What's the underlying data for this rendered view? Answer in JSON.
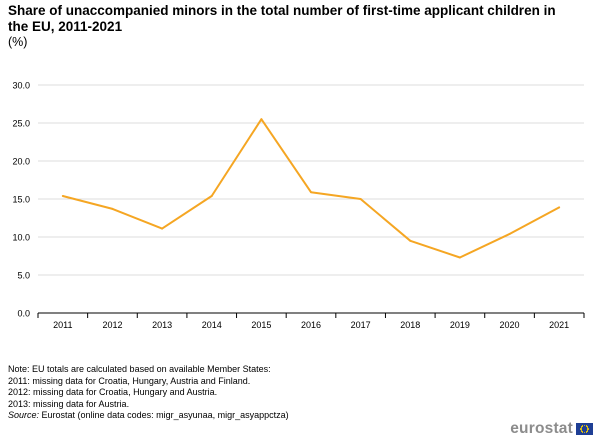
{
  "title": "Share of unaccompanied minors in the total number of first-time applicant children in the EU, 2011-2021",
  "unit_label": "(%)",
  "chart_data": {
    "type": "line",
    "title": "Share of unaccompanied minors in the total number of first-time applicant children in the EU, 2011-2021",
    "xlabel": "",
    "ylabel": "(%)",
    "categories": [
      "2011",
      "2012",
      "2013",
      "2014",
      "2015",
      "2016",
      "2017",
      "2018",
      "2019",
      "2020",
      "2021"
    ],
    "series": [
      {
        "values": [
          15.4,
          13.7,
          11.1,
          15.4,
          25.5,
          15.9,
          15.0,
          9.5,
          7.3,
          10.4,
          13.9
        ],
        "color": "#f5a623"
      }
    ],
    "ylim": [
      0,
      30
    ],
    "yticks": [
      "0.0",
      "5.0",
      "10.0",
      "15.0",
      "20.0",
      "25.0",
      "30.0"
    ],
    "grid": true,
    "legend": "none"
  },
  "notes": [
    "Note: EU totals are calculated based on available Member States:",
    "2011: missing data for Croatia, Hungary, Austria and Finland.",
    "2012: missing data for Croatia, Hungary and Austria.",
    "2013: missing data for Austria."
  ],
  "source_label": "Source:",
  "source_text": " Eurostat  (online data codes: migr_asyunaa, migr_asyappctza)",
  "logo_text": "eurostat",
  "logo_icon": "eu-flag-icon"
}
